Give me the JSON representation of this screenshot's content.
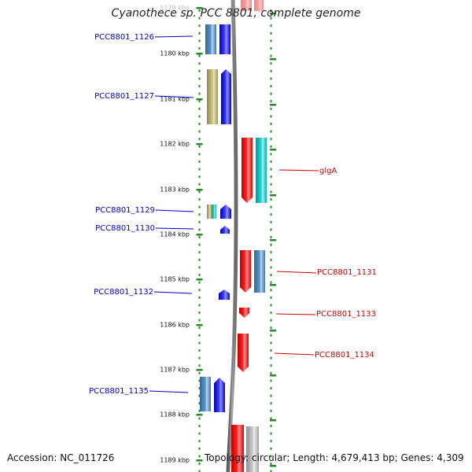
{
  "title": "Cyanothece sp. PCC 8801, complete genome",
  "footer": {
    "accession": "Accession: NC_011726",
    "topology": "Topology: circular; Length: 4,679,413 bp; Genes: 4,309"
  },
  "colors": {
    "forward_strand": "#0000ff",
    "reverse_strand": "#ff0000",
    "forward_label": "#0000cc",
    "reverse_label": "#cc0000",
    "tick": "#228b22",
    "orf_blue": "#4682b4",
    "orf_khaki": "#bdb76b",
    "orf_cyan": "#00cccc",
    "orf_gray": "#b0b0b0"
  },
  "ruler_labels": [
    "1179 kbp",
    "1180 kbp",
    "1181 kbp",
    "1182 kbp",
    "1183 kbp",
    "1184 kbp",
    "1185 kbp",
    "1186 kbp",
    "1187 kbp",
    "1188 kbp",
    "1189 kbp"
  ],
  "forward_genes": [
    {
      "label": "PCC8801_1126"
    },
    {
      "label": "PCC8801_1127"
    },
    {
      "label": "PCC8801_1129"
    },
    {
      "label": "PCC8801_1130"
    },
    {
      "label": "PCC8801_1132"
    },
    {
      "label": "PCC8801_1135"
    }
  ],
  "reverse_genes": [
    {
      "label": "glgA"
    },
    {
      "label": "PCC8801_1131"
    },
    {
      "label": "PCC8801_1133"
    },
    {
      "label": "PCC8801_1134"
    }
  ]
}
